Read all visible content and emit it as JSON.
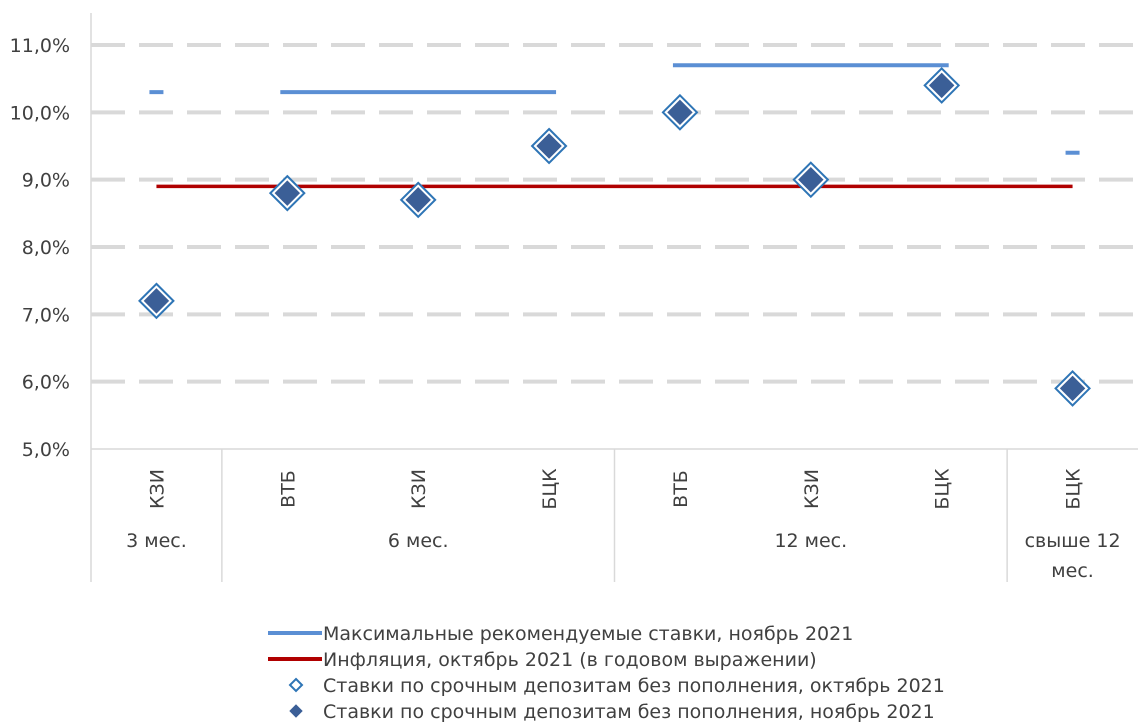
{
  "chart_data": {
    "type": "scatter",
    "y_tick_labels": [
      "5,0%",
      "6,0%",
      "7,0%",
      "8,0%",
      "9,0%",
      "10,0%",
      "11,0%"
    ],
    "ylim": [
      5.0,
      11.0
    ],
    "grid": true,
    "legend_position": "bottom",
    "categories": [
      "КЗИ",
      "ВТБ",
      "КЗИ",
      "БЦК",
      "ВТБ",
      "КЗИ",
      "БЦК",
      "БЦК"
    ],
    "groups": [
      {
        "label": "3 мес.",
        "start": 0,
        "end": 0
      },
      {
        "label": "6 мес.",
        "start": 1,
        "end": 3
      },
      {
        "label": "12 мес.",
        "start": 4,
        "end": 6
      },
      {
        "label": "свыше 12 мес.",
        "start": 7,
        "end": 7
      }
    ],
    "series": [
      {
        "name": "Максимальные рекомендуемые ставки, ноябрь 2021",
        "kind": "line",
        "color": "#5b8fd4",
        "values": [
          10.3,
          10.3,
          10.3,
          10.3,
          10.7,
          10.7,
          10.7,
          9.4
        ]
      },
      {
        "name": "Инфляция, октябрь 2021 (в годовом выражении)",
        "kind": "line",
        "color": "#b00000",
        "values": [
          8.9,
          8.9,
          8.9,
          8.9,
          8.9,
          8.9,
          8.9,
          8.9
        ]
      },
      {
        "name": "Ставки по срочным депозитам без пополнения, октябрь 2021",
        "kind": "marker-hollow",
        "color": "#2e75b6",
        "values": [
          7.2,
          8.8,
          8.7,
          9.5,
          10.0,
          9.0,
          10.4,
          5.9
        ]
      },
      {
        "name": "Ставки по срочным депозитам без пополнения, ноябрь 2021",
        "kind": "marker-filled",
        "color": "#3b5f97",
        "values": [
          7.2,
          8.8,
          8.7,
          9.5,
          10.0,
          9.0,
          10.4,
          5.9
        ]
      }
    ]
  }
}
